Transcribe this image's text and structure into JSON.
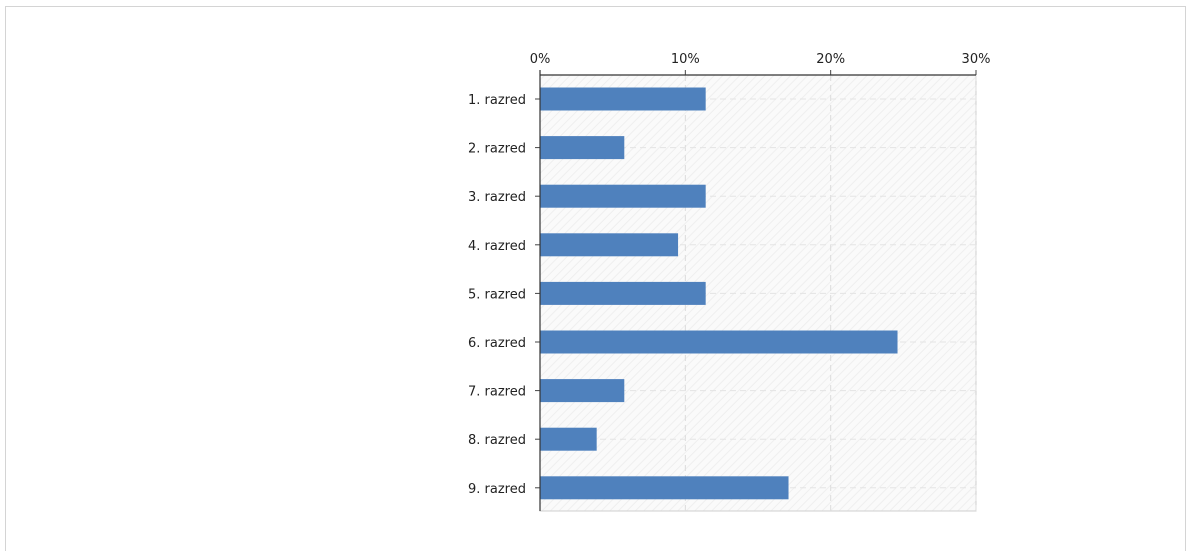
{
  "chart_data": {
    "type": "bar",
    "orientation": "horizontal",
    "categories": [
      "1.  razred",
      "2.  razred",
      "3.  razred",
      "4. razred",
      "5. razred",
      "6. razred",
      "7. razred",
      "8. razred",
      "9. razred"
    ],
    "values": [
      11.4,
      5.8,
      11.4,
      9.5,
      11.4,
      24.6,
      5.8,
      3.9,
      17.1
    ],
    "xlim": [
      0,
      30
    ],
    "x_ticks": [
      "0%",
      "10%",
      "20%",
      "30%"
    ],
    "x_tick_values": [
      0,
      10,
      20,
      30
    ],
    "grid": true,
    "bar_color": "#4f81bd",
    "title": "",
    "xlabel": "",
    "ylabel": ""
  }
}
